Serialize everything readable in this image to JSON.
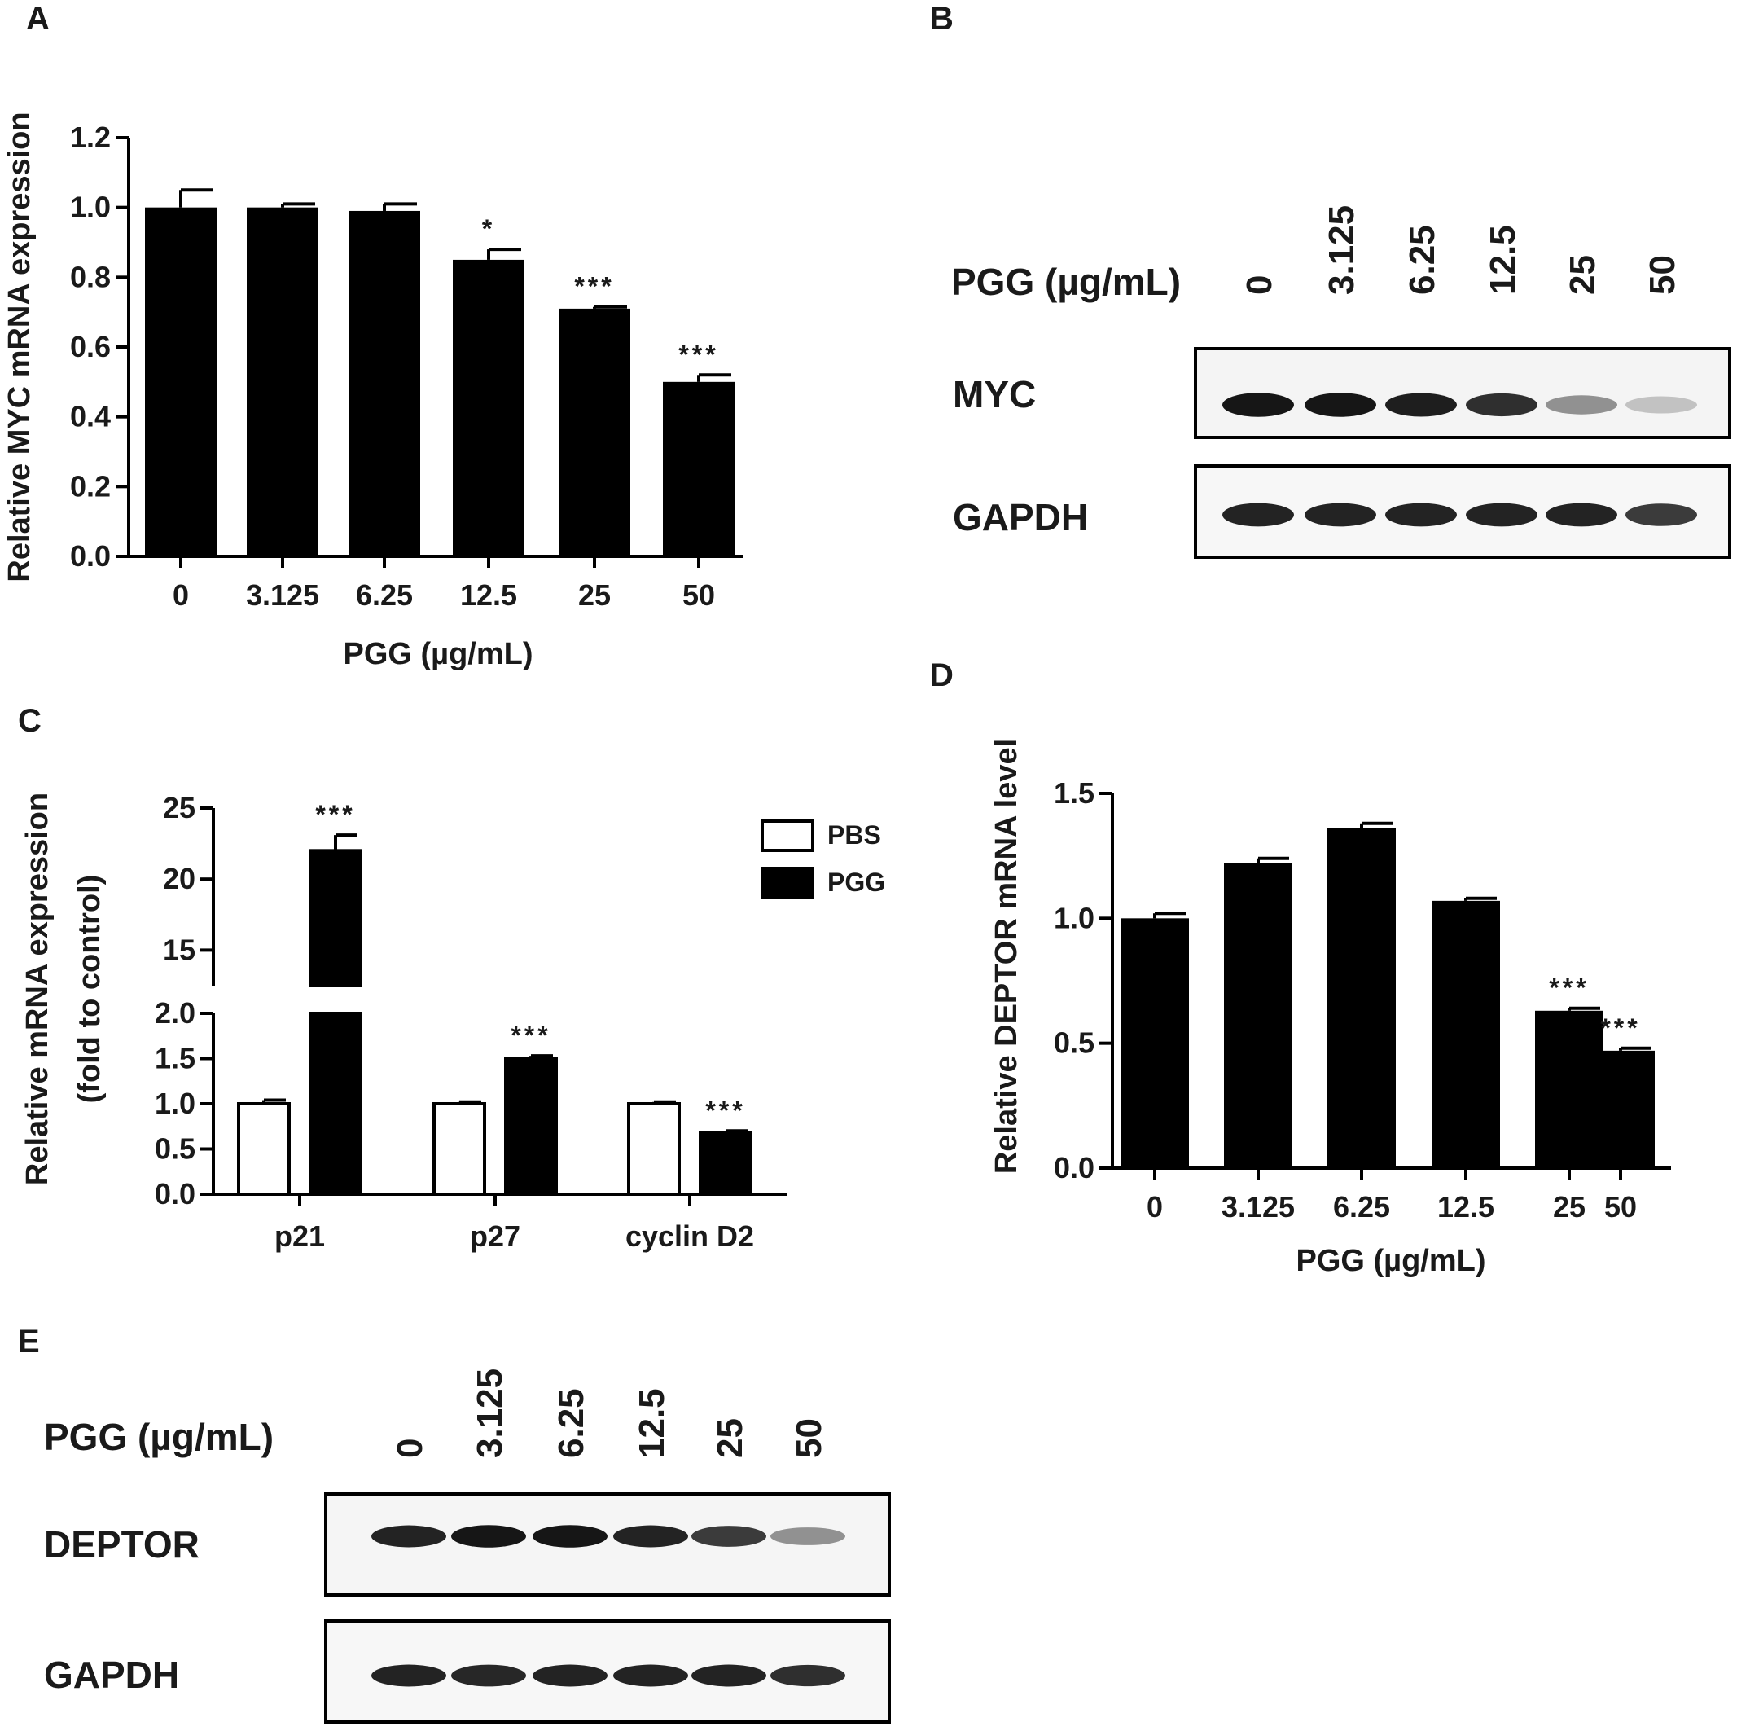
{
  "chart_data": [
    {
      "panel": "A",
      "type": "bar",
      "categories": [
        "0",
        "3.125",
        "6.25",
        "12.5",
        "25",
        "50"
      ],
      "values": [
        1.0,
        1.0,
        0.99,
        0.85,
        0.71,
        0.5
      ],
      "errors": [
        0.05,
        0.01,
        0.02,
        0.03,
        0.005,
        0.02
      ],
      "significance": [
        "",
        "",
        "",
        "*",
        "***",
        "***"
      ],
      "xlabel": "PGG (µg/mL)",
      "ylabel": "Relative MYC mRNA expression",
      "ylim": [
        0,
        1.2
      ],
      "yticks": [
        "0.0",
        "0.2",
        "0.4",
        "0.6",
        "0.8",
        "1.0",
        "1.2"
      ],
      "bar_color": "#000000"
    },
    {
      "panel": "C",
      "type": "bar",
      "categories": [
        "p21",
        "p27",
        "cyclin D2"
      ],
      "series": [
        {
          "name": "PBS",
          "values": [
            1.0,
            1.0,
            1.0
          ],
          "errors": [
            0.04,
            0.02,
            0.02
          ],
          "significance": [
            "",
            "",
            ""
          ],
          "fill": "#ffffff"
        },
        {
          "name": "PGG",
          "values": [
            22.0,
            1.5,
            0.68
          ],
          "errors": [
            1.1,
            0.03,
            0.02
          ],
          "significance": [
            "***",
            "***",
            "***"
          ],
          "fill": "#000000"
        }
      ],
      "ylabel": "Relative mRNA expression",
      "ylabel2": "(fold to control)",
      "axis_break": {
        "lower": [
          0,
          2.0
        ],
        "upper": [
          12.5,
          25
        ]
      },
      "yticks_lower": [
        "0.0",
        "0.5",
        "1.0",
        "1.5",
        "2.0"
      ],
      "yticks_upper": [
        "15",
        "20",
        "25"
      ],
      "legend": "top-right"
    },
    {
      "panel": "D",
      "type": "bar",
      "categories": [
        "0",
        "3.125",
        "6.25",
        "12.5",
        "25",
        "50"
      ],
      "values": [
        1.0,
        1.22,
        1.36,
        1.07,
        0.63,
        0.47
      ],
      "errors": [
        0.02,
        0.02,
        0.02,
        0.01,
        0.01,
        0.01
      ],
      "significance": [
        "",
        "",
        "",
        "",
        "***",
        "***"
      ],
      "xlabel": "PGG (µg/mL)",
      "ylabel": "Relative DEPTOR mRNA level",
      "ylim": [
        0,
        1.5
      ],
      "yticks": [
        "0.0",
        "0.5",
        "1.0",
        "1.5"
      ],
      "bar_color": "#000000"
    }
  ],
  "panels": {
    "A": "A",
    "B": "B",
    "C": "C",
    "D": "D",
    "E": "E"
  },
  "blots": {
    "B": {
      "header": "PGG (µg/mL)",
      "lanes": [
        "0",
        "3.125",
        "6.25",
        "12.5",
        "25",
        "50"
      ],
      "rows": [
        {
          "label": "MYC",
          "band_intensity": [
            0.95,
            0.95,
            0.92,
            0.85,
            0.45,
            0.25
          ]
        },
        {
          "label": "GAPDH",
          "band_intensity": [
            0.9,
            0.9,
            0.9,
            0.9,
            0.9,
            0.8
          ]
        }
      ]
    },
    "E": {
      "header": "PGG (µg/mL)",
      "lanes": [
        "0",
        "3.125",
        "6.25",
        "12.5",
        "25",
        "50"
      ],
      "rows": [
        {
          "label": "DEPTOR",
          "band_intensity": [
            0.9,
            0.95,
            0.95,
            0.9,
            0.8,
            0.45
          ]
        },
        {
          "label": "GAPDH",
          "band_intensity": [
            0.9,
            0.88,
            0.9,
            0.9,
            0.9,
            0.85
          ]
        }
      ]
    }
  }
}
